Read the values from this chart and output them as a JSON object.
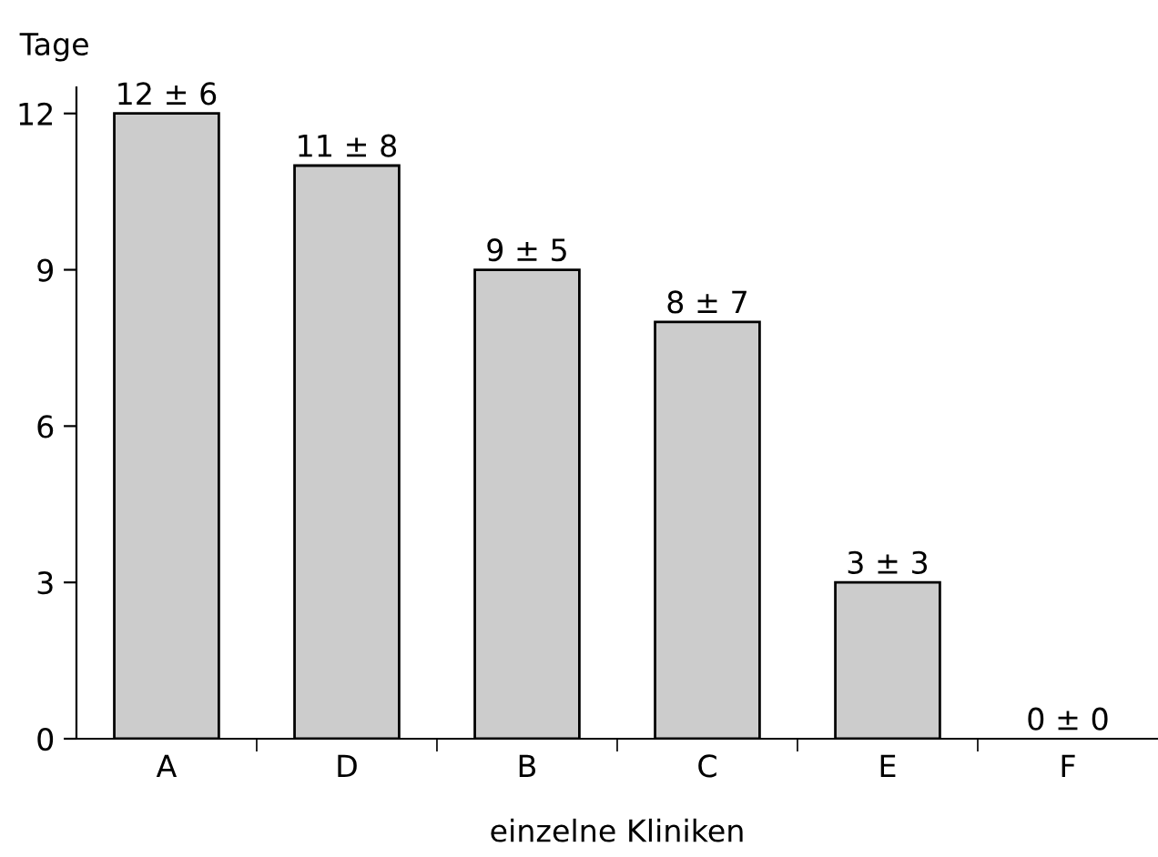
{
  "chart_data": {
    "type": "bar",
    "ylabel": "Tage",
    "xlabel": "einzelne Kliniken",
    "categories": [
      "A",
      "D",
      "B",
      "C",
      "E",
      "F"
    ],
    "values": [
      12,
      11,
      9,
      8,
      3,
      0
    ],
    "value_labels": [
      "12 ± 6",
      "11 ± 8",
      "9 ± 5",
      "8 ± 7",
      "3 ± 3",
      "0 ± 0"
    ],
    "color": "#cccccc",
    "ylim": [
      0,
      12.5
    ],
    "yticks": [
      0,
      3,
      6,
      9,
      12
    ],
    "grid": false
  }
}
